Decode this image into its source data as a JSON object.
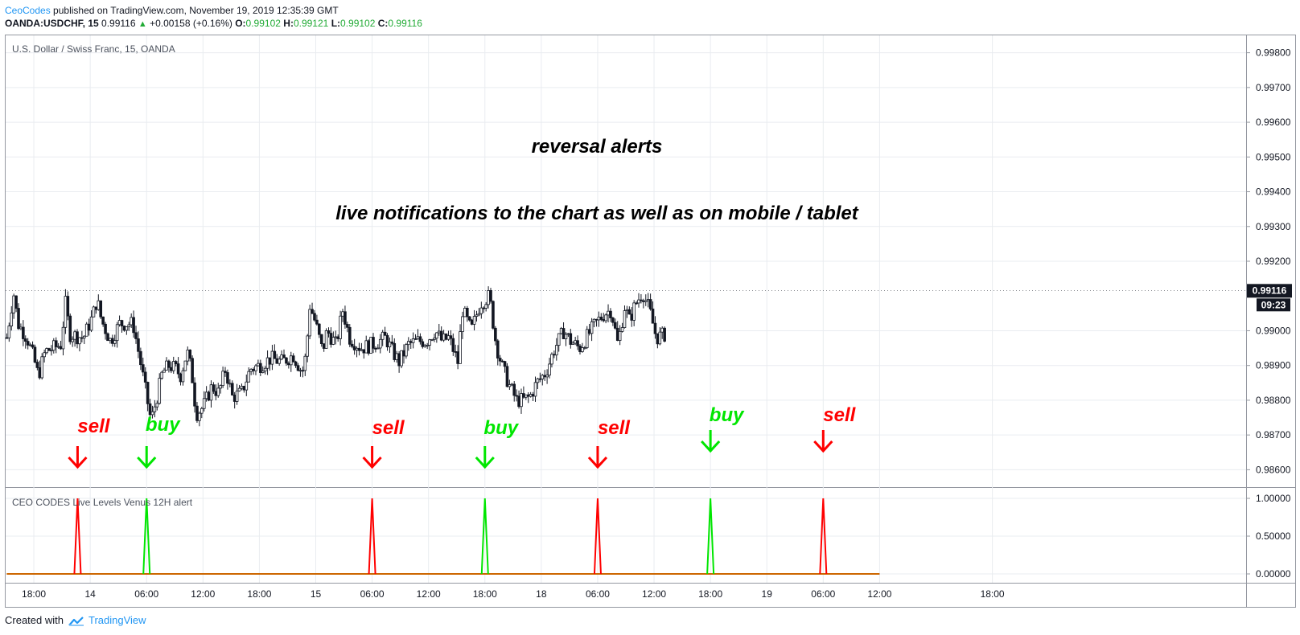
{
  "header": {
    "author": "CeoCodes",
    "published": "published on TradingView.com, November 19, 2019 12:35:39 GMT",
    "symbol": "OANDA:USDCHF, 15",
    "last": "0.99116",
    "change_arrow": "▲",
    "change": "+0.00158 (+0.16%)",
    "o_label": "O:",
    "o": "0.99102",
    "h_label": "H:",
    "h": "0.99121",
    "l_label": "L:",
    "l": "0.99102",
    "c_label": "C:",
    "c": "0.99116"
  },
  "footer": {
    "created": "Created with",
    "brand": "TradingView"
  },
  "colors": {
    "up": "#22ab36",
    "sell": "#ff0000",
    "buy": "#00e600",
    "grid": "#e9ecf0",
    "candle": "#131722"
  },
  "chart_data": {
    "type": "candlestick",
    "title": "U.S. Dollar / Swiss Franc, 15, OANDA",
    "annotations": [
      "reversal alerts",
      "live notifications to the chart as well as on mobile / tablet"
    ],
    "price_axis": {
      "range": [
        0.9855,
        0.9985
      ],
      "ticks": [
        "0.99800",
        "0.99700",
        "0.99600",
        "0.99500",
        "0.99400",
        "0.99300",
        "0.99200",
        "0.99000",
        "0.98900",
        "0.98800",
        "0.98700",
        "0.98600"
      ],
      "last_price": "0.99116",
      "countdown": "09:23"
    },
    "time_axis": {
      "range": [
        -0.125,
        5.375
      ],
      "ticks": [
        {
          "t": 0,
          "label": "18:00"
        },
        {
          "t": 0.25,
          "label": "14"
        },
        {
          "t": 0.5,
          "label": "06:00"
        },
        {
          "t": 0.75,
          "label": "12:00"
        },
        {
          "t": 1,
          "label": "18:00"
        },
        {
          "t": 1.25,
          "label": "15"
        },
        {
          "t": 1.5,
          "label": "06:00"
        },
        {
          "t": 1.75,
          "label": "12:00"
        },
        {
          "t": 2,
          "label": "18:00"
        },
        {
          "t": 2.25,
          "label": "18"
        },
        {
          "t": 2.5,
          "label": "06:00"
        },
        {
          "t": 2.75,
          "label": "12:00"
        },
        {
          "t": 3,
          "label": "18:00"
        },
        {
          "t": 3.25,
          "label": "19"
        },
        {
          "t": 3.5,
          "label": "06:00"
        },
        {
          "t": 3.75,
          "label": "12:00"
        },
        {
          "t": 4.25,
          "label": "18:00"
        }
      ]
    },
    "price_path": [
      [
        -0.12,
        0.9898
      ],
      [
        -0.09,
        0.9911
      ],
      [
        -0.07,
        0.9902
      ],
      [
        -0.03,
        0.9898
      ],
      [
        0,
        0.9892
      ],
      [
        0.02,
        0.9887
      ],
      [
        0.05,
        0.9894
      ],
      [
        0.12,
        0.9896
      ],
      [
        0.14,
        0.9908
      ],
      [
        0.16,
        0.9899
      ],
      [
        0.22,
        0.9898
      ],
      [
        0.26,
        0.9904
      ],
      [
        0.28,
        0.9909
      ],
      [
        0.3,
        0.9903
      ],
      [
        0.34,
        0.9897
      ],
      [
        0.38,
        0.9902
      ],
      [
        0.44,
        0.9902
      ],
      [
        0.47,
        0.9892
      ],
      [
        0.5,
        0.9881
      ],
      [
        0.52,
        0.9874
      ],
      [
        0.55,
        0.9882
      ],
      [
        0.57,
        0.9888
      ],
      [
        0.6,
        0.989
      ],
      [
        0.63,
        0.9889
      ],
      [
        0.65,
        0.9887
      ],
      [
        0.68,
        0.9894
      ],
      [
        0.7,
        0.9888
      ],
      [
        0.72,
        0.9876
      ],
      [
        0.75,
        0.9878
      ],
      [
        0.79,
        0.9884
      ],
      [
        0.82,
        0.9882
      ],
      [
        0.85,
        0.9889
      ],
      [
        0.88,
        0.9881
      ],
      [
        0.92,
        0.9882
      ],
      [
        0.96,
        0.9889
      ],
      [
        1,
        0.989
      ],
      [
        1.05,
        0.9892
      ],
      [
        1.1,
        0.9891
      ],
      [
        1.15,
        0.9893
      ],
      [
        1.19,
        0.9888
      ],
      [
        1.21,
        0.9894
      ],
      [
        1.22,
        0.9908
      ],
      [
        1.25,
        0.9902
      ],
      [
        1.28,
        0.9894
      ],
      [
        1.3,
        0.99
      ],
      [
        1.34,
        0.9896
      ],
      [
        1.37,
        0.9906
      ],
      [
        1.4,
        0.9898
      ],
      [
        1.45,
        0.9895
      ],
      [
        1.5,
        0.9896
      ],
      [
        1.56,
        0.9898
      ],
      [
        1.59,
        0.9894
      ],
      [
        1.62,
        0.9891
      ],
      [
        1.66,
        0.9896
      ],
      [
        1.7,
        0.9897
      ],
      [
        1.74,
        0.9897
      ],
      [
        1.78,
        0.99
      ],
      [
        1.81,
        0.9897
      ],
      [
        1.84,
        0.9898
      ],
      [
        1.88,
        0.9891
      ],
      [
        1.9,
        0.9906
      ],
      [
        1.94,
        0.99
      ],
      [
        1.98,
        0.9908
      ],
      [
        2.02,
        0.991
      ],
      [
        2.05,
        0.9896
      ],
      [
        2.08,
        0.9889
      ],
      [
        2.11,
        0.9884
      ],
      [
        2.14,
        0.988
      ],
      [
        2.17,
        0.988
      ],
      [
        2.2,
        0.9881
      ],
      [
        2.23,
        0.9885
      ],
      [
        2.27,
        0.9888
      ],
      [
        2.31,
        0.9895
      ],
      [
        2.35,
        0.99
      ],
      [
        2.38,
        0.9897
      ],
      [
        2.42,
        0.9895
      ],
      [
        2.46,
        0.9899
      ],
      [
        2.49,
        0.9902
      ],
      [
        2.53,
        0.9905
      ],
      [
        2.56,
        0.9906
      ],
      [
        2.59,
        0.9896
      ],
      [
        2.62,
        0.9907
      ],
      [
        2.64,
        0.9903
      ],
      [
        2.67,
        0.9908
      ],
      [
        2.7,
        0.9911
      ],
      [
        2.73,
        0.9906
      ],
      [
        2.76,
        0.9898
      ],
      [
        2.8,
        0.9899
      ]
    ],
    "price_last": 0.99116,
    "pane_title": "CEO CODES Live Levels Venus 12H alert",
    "indicator": {
      "range": [
        0,
        1
      ],
      "ticks": [
        "1.00000",
        "0.50000",
        "0.00000"
      ],
      "series": [
        {
          "signal": "sell",
          "t": 0.194,
          "value": 1
        },
        {
          "signal": "buy",
          "t": 0.5,
          "value": 1
        },
        {
          "signal": "sell",
          "t": 1.5,
          "value": 1
        },
        {
          "signal": "buy",
          "t": 2,
          "value": 1
        },
        {
          "signal": "sell",
          "t": 2.5,
          "value": 1
        },
        {
          "signal": "buy",
          "t": 3,
          "value": 1
        },
        {
          "signal": "sell",
          "t": 3.5,
          "value": 1
        }
      ]
    },
    "signals": [
      "sell",
      "buy",
      "sell",
      "buy",
      "sell",
      "buy",
      "sell"
    ]
  }
}
